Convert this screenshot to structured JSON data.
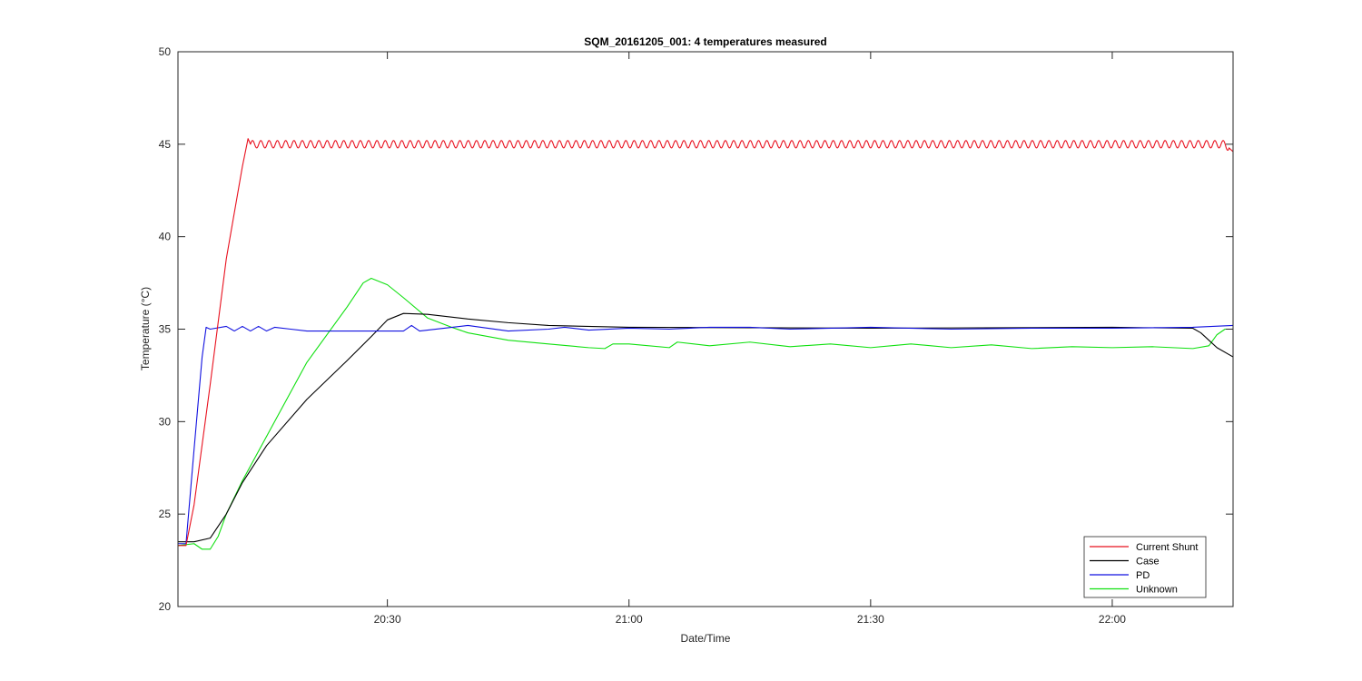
{
  "chart_data": {
    "type": "line",
    "title": "SQM_20161205_001: 4 temperatures measured",
    "xlabel": "Date/Time",
    "ylabel": "Temperature (°C)",
    "xlim": [
      "20:04",
      "22:15"
    ],
    "ylim": [
      20,
      50
    ],
    "x_ticks": [
      {
        "label": "20:30",
        "minute": "20:30"
      },
      {
        "label": "21:00",
        "minute": "21:00"
      },
      {
        "label": "21:30",
        "minute": "21:30"
      },
      {
        "label": "22:00",
        "minute": "22:00"
      }
    ],
    "y_ticks": [
      20,
      25,
      30,
      35,
      40,
      45,
      50
    ],
    "grid": false,
    "legend_position": "bottom-right",
    "series": [
      {
        "name": "Current Shunt",
        "color": "#e8101e",
        "ripple": {
          "amplitude": 0.2,
          "period_minutes": 1.03,
          "start": "20:13"
        },
        "points": [
          [
            "20:04",
            23.3
          ],
          [
            "20:05",
            23.3
          ],
          [
            "20:06",
            25.5
          ],
          [
            "20:08",
            32.0
          ],
          [
            "20:10",
            38.8
          ],
          [
            "20:12",
            43.8
          ],
          [
            "20:12.7",
            45.3
          ],
          [
            "20:13",
            45.0
          ],
          [
            "22:14",
            45.0
          ],
          [
            "22:15",
            44.6
          ]
        ]
      },
      {
        "name": "Case",
        "color": "#000000",
        "points": [
          [
            "20:04",
            23.5
          ],
          [
            "20:06",
            23.5
          ],
          [
            "20:08",
            23.7
          ],
          [
            "20:10",
            25.0
          ],
          [
            "20:12",
            26.7
          ],
          [
            "20:15",
            28.7
          ],
          [
            "20:20",
            31.2
          ],
          [
            "20:25",
            33.3
          ],
          [
            "20:28",
            34.6
          ],
          [
            "20:30",
            35.5
          ],
          [
            "20:32",
            35.85
          ],
          [
            "20:35",
            35.8
          ],
          [
            "20:40",
            35.55
          ],
          [
            "20:45",
            35.35
          ],
          [
            "20:50",
            35.2
          ],
          [
            "21:00",
            35.1
          ],
          [
            "21:30",
            35.05
          ],
          [
            "22:00",
            35.1
          ],
          [
            "22:10",
            35.05
          ],
          [
            "22:11",
            34.8
          ],
          [
            "22:13",
            34.0
          ],
          [
            "22:15",
            33.5
          ]
        ]
      },
      {
        "name": "PD",
        "color": "#1010e0",
        "points": [
          [
            "20:04",
            23.4
          ],
          [
            "20:05",
            23.4
          ],
          [
            "20:06",
            28.5
          ],
          [
            "20:07",
            33.5
          ],
          [
            "20:07.5",
            35.1
          ],
          [
            "20:08",
            35.0
          ],
          [
            "20:10",
            35.15
          ],
          [
            "20:11",
            34.9
          ],
          [
            "20:12",
            35.15
          ],
          [
            "20:13",
            34.9
          ],
          [
            "20:14",
            35.15
          ],
          [
            "20:15",
            34.9
          ],
          [
            "20:16",
            35.1
          ],
          [
            "20:18",
            35.0
          ],
          [
            "20:20",
            34.9
          ],
          [
            "20:25",
            34.9
          ],
          [
            "20:30",
            34.9
          ],
          [
            "20:32",
            34.9
          ],
          [
            "20:33",
            35.2
          ],
          [
            "20:34",
            34.9
          ],
          [
            "20:40",
            35.2
          ],
          [
            "20:45",
            34.9
          ],
          [
            "20:50",
            35.0
          ],
          [
            "20:52",
            35.1
          ],
          [
            "20:55",
            34.95
          ],
          [
            "21:00",
            35.05
          ],
          [
            "21:05",
            35.0
          ],
          [
            "21:10",
            35.1
          ],
          [
            "21:15",
            35.1
          ],
          [
            "21:20",
            35.0
          ],
          [
            "21:30",
            35.1
          ],
          [
            "21:40",
            35.0
          ],
          [
            "21:50",
            35.05
          ],
          [
            "22:00",
            35.05
          ],
          [
            "22:10",
            35.1
          ],
          [
            "22:15",
            35.2
          ]
        ]
      },
      {
        "name": "Unknown",
        "color": "#10e010",
        "points": [
          [
            "20:04",
            23.3
          ],
          [
            "20:06",
            23.4
          ],
          [
            "20:07",
            23.1
          ],
          [
            "20:08",
            23.1
          ],
          [
            "20:09",
            23.8
          ],
          [
            "20:10",
            25.0
          ],
          [
            "20:12",
            26.8
          ],
          [
            "20:15",
            29.2
          ],
          [
            "20:20",
            33.2
          ],
          [
            "20:25",
            36.2
          ],
          [
            "20:27",
            37.5
          ],
          [
            "20:28",
            37.75
          ],
          [
            "20:30",
            37.4
          ],
          [
            "20:32",
            36.7
          ],
          [
            "20:35",
            35.6
          ],
          [
            "20:38",
            35.1
          ],
          [
            "20:40",
            34.8
          ],
          [
            "20:45",
            34.4
          ],
          [
            "20:50",
            34.2
          ],
          [
            "20:55",
            34.0
          ],
          [
            "20:57",
            33.95
          ],
          [
            "20:58",
            34.2
          ],
          [
            "21:00",
            34.2
          ],
          [
            "21:05",
            34.0
          ],
          [
            "21:06",
            34.3
          ],
          [
            "21:10",
            34.1
          ],
          [
            "21:15",
            34.3
          ],
          [
            "21:20",
            34.05
          ],
          [
            "21:25",
            34.2
          ],
          [
            "21:30",
            34.0
          ],
          [
            "21:35",
            34.2
          ],
          [
            "21:40",
            34.0
          ],
          [
            "21:45",
            34.15
          ],
          [
            "21:50",
            33.95
          ],
          [
            "21:55",
            34.05
          ],
          [
            "22:00",
            34.0
          ],
          [
            "22:05",
            34.05
          ],
          [
            "22:10",
            33.95
          ],
          [
            "22:12",
            34.1
          ],
          [
            "22:13",
            34.7
          ],
          [
            "22:14",
            35.0
          ],
          [
            "22:15",
            35.0
          ]
        ]
      }
    ]
  }
}
